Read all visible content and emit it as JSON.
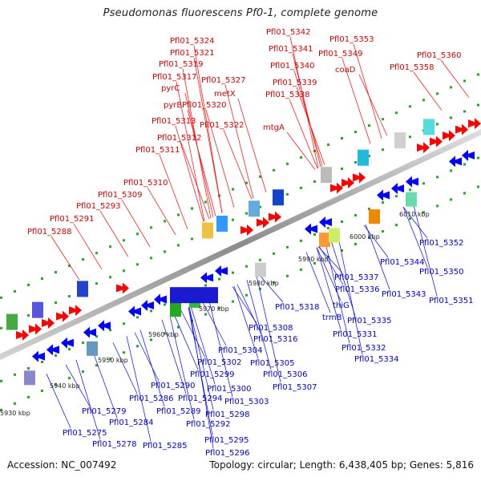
{
  "title": "Pseudomonas fluorescens Pf0-1, complete genome",
  "footer": {
    "accession": "Accession: NC_007492",
    "topology": "Topology: circular; Length: 6,438,405 bp; Genes: 5,816"
  },
  "colors": {
    "forward": "#ff0000",
    "reverse": "#0000ff",
    "backbone": "#8a8a8a",
    "dots": "#22aa22"
  },
  "ticks": [
    "5930 kbp",
    "5940 kbp",
    "5950 kbp",
    "5960 kbp",
    "5970 kbp",
    "5980 kbp",
    "5990 kbp",
    "6000 kbp",
    "6010 kbp"
  ],
  "forward_labels": [
    "Pfl01_5324",
    "Pfl01_5321",
    "Pfl01_5319",
    "Pfl01_5317",
    "pyrC",
    "pyrB",
    "Pfl01_5313",
    "Pfl01_5312",
    "Pfl01_5311",
    "Pfl01_5327",
    "metX",
    "Pfl01_5320",
    "Pfl01_5322",
    "Pfl01_5310",
    "Pfl01_5309",
    "Pfl01_5293",
    "Pfl01_5291",
    "Pfl01_5288",
    "Pfl01_5342",
    "Pfl01_5341",
    "Pfl01_5340",
    "Pfl01_5339",
    "Pfl01_5338",
    "mtgA",
    "Pfl01_5353",
    "Pfl01_5349",
    "coaD",
    "Pfl01_5360",
    "Pfl01_5358"
  ],
  "reverse_labels": [
    "Pfl01_5352",
    "Pfl01_5350",
    "Pfl01_5351",
    "Pfl01_5344",
    "Pfl01_5343",
    "Pfl01_5337",
    "Pfl01_5336",
    "thiG",
    "trmB",
    "Pfl01_5335",
    "Pfl01_5331",
    "Pfl01_5332",
    "Pfl01_5334",
    "Pfl01_5318",
    "Pfl01_5308",
    "Pfl01_5316",
    "Pfl01_5304",
    "Pfl01_5302",
    "Pfl01_5305",
    "Pfl01_5299",
    "Pfl01_5306",
    "Pfl01_5307",
    "Pfl01_5300",
    "Pfl01_5303",
    "Pfl01_5290",
    "Pfl01_5294",
    "Pfl01_5298",
    "Pfl01_5286",
    "Pfl01_5289",
    "Pfl01_5292",
    "Pfl01_5279",
    "Pfl01_5284",
    "Pfl01_5275",
    "Pfl01_5278",
    "Pfl01_5285",
    "Pfl01_5295",
    "Pfl01_5296"
  ]
}
